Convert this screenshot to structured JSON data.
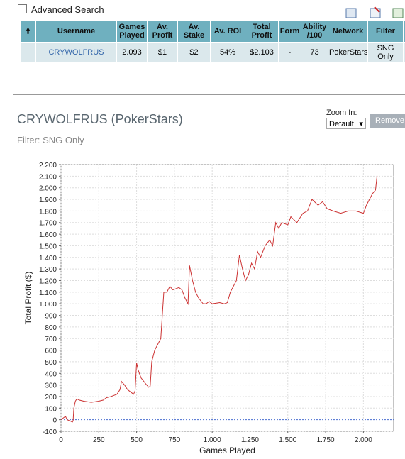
{
  "search": {
    "label": "Advanced Search"
  },
  "table": {
    "columns": [
      "Username",
      "Games Played",
      "Av. Profit",
      "Av. Stake",
      "Av. ROI",
      "Total Profit",
      "Form",
      "Ability /100",
      "Network",
      "Filter"
    ],
    "rows": [
      [
        "CRYWOLFRUS",
        "2.093",
        "$1",
        "$2",
        "54%",
        "$2.103",
        "-",
        "73",
        "PokerStars",
        "SNG Only"
      ]
    ]
  },
  "header": {
    "title": "CRYWOLFRUS (PokerStars)",
    "subtitle": "Filter: SNG Only"
  },
  "zoom": {
    "label": "Zoom In:",
    "option": "Default",
    "button": "Remove"
  },
  "chart_data": {
    "type": "line",
    "xlabel": "Games Played",
    "ylabel": "Total Profit ($)",
    "xlim": [
      0,
      2200
    ],
    "ylim": [
      -100,
      2200
    ],
    "xticks": [
      0,
      250,
      500,
      750,
      {
        "value": 1000,
        "label": "1.000"
      },
      {
        "value": 1250,
        "label": "1.250"
      },
      {
        "value": 1500,
        "label": "1.500"
      },
      {
        "value": 1750,
        "label": "1.750"
      },
      {
        "value": 2000,
        "label": "2.000"
      }
    ],
    "yticks": [
      -100,
      0,
      100,
      200,
      300,
      400,
      500,
      600,
      700,
      800,
      900,
      {
        "value": 1000,
        "label": "1.000"
      },
      {
        "value": 1100,
        "label": "1.100"
      },
      {
        "value": 1200,
        "label": "1.200"
      },
      {
        "value": 1300,
        "label": "1.300"
      },
      {
        "value": 1400,
        "label": "1.400"
      },
      {
        "value": 1500,
        "label": "1.500"
      },
      {
        "value": 1600,
        "label": "1.600"
      },
      {
        "value": 1700,
        "label": "1.700"
      },
      {
        "value": 1800,
        "label": "1.800"
      },
      {
        "value": 1900,
        "label": "1.900"
      },
      {
        "value": 2000,
        "label": "2.000"
      },
      {
        "value": 2100,
        "label": "2.100"
      },
      {
        "value": 2200,
        "label": "2.200"
      }
    ],
    "grid": true,
    "zero_line_color": "#4a6fd0",
    "series": [
      {
        "name": "Total Profit",
        "color": "#cc3333",
        "x": [
          0,
          20,
          30,
          40,
          60,
          75,
          80,
          85,
          95,
          105,
          120,
          150,
          200,
          250,
          280,
          300,
          330,
          350,
          370,
          390,
          400,
          420,
          440,
          460,
          480,
          490,
          500,
          510,
          530,
          560,
          580,
          590,
          600,
          620,
          640,
          660,
          670,
          680,
          700,
          720,
          740,
          760,
          780,
          800,
          820,
          840,
          850,
          870,
          890,
          910,
          940,
          960,
          980,
          1000,
          1050,
          1080,
          1100,
          1120,
          1160,
          1180,
          1200,
          1220,
          1240,
          1260,
          1280,
          1300,
          1320,
          1350,
          1380,
          1400,
          1420,
          1440,
          1460,
          1500,
          1520,
          1560,
          1600,
          1630,
          1660,
          1700,
          1730,
          1760,
          1800,
          1850,
          1900,
          1950,
          2000,
          2020,
          2040,
          2060,
          2080,
          2090,
          2093
        ],
        "values": [
          0,
          20,
          30,
          0,
          -10,
          -20,
          -10,
          100,
          160,
          180,
          170,
          160,
          150,
          160,
          170,
          190,
          200,
          210,
          220,
          260,
          330,
          300,
          260,
          240,
          220,
          250,
          490,
          430,
          360,
          310,
          280,
          290,
          500,
          600,
          650,
          700,
          900,
          1100,
          1100,
          1150,
          1120,
          1130,
          1140,
          1120,
          1050,
          1000,
          1330,
          1200,
          1100,
          1050,
          1000,
          1000,
          1020,
          1000,
          1010,
          1000,
          1010,
          1100,
          1200,
          1420,
          1300,
          1200,
          1250,
          1350,
          1300,
          1450,
          1400,
          1500,
          1550,
          1500,
          1700,
          1650,
          1700,
          1680,
          1750,
          1700,
          1780,
          1800,
          1900,
          1850,
          1880,
          1820,
          1800,
          1780,
          1800,
          1800,
          1780,
          1850,
          1900,
          1950,
          1980,
          2100,
          2100
        ]
      }
    ]
  }
}
